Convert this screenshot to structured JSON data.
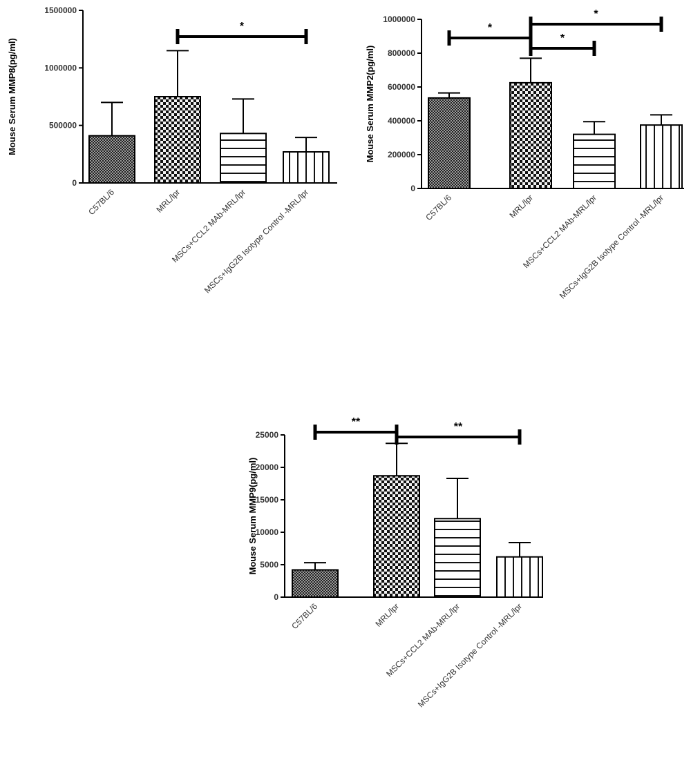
{
  "chart_data": [
    {
      "type": "bar",
      "title": "",
      "xlabel": "",
      "ylabel": "Mouse Serum MMP8(pg/ml)",
      "ylim": [
        0,
        1500000
      ],
      "yticks": [
        "0",
        "500000",
        "1000000",
        "1500000"
      ],
      "ytick_values": [
        0,
        500000,
        1000000,
        1500000
      ],
      "categories": [
        "C57BL/6",
        "MRL/lpr",
        "MSCs+CCL2 MAb-MRL/lpr",
        "MSCs+IgG2B Isotype Control -MRL/lpr"
      ],
      "values": [
        410000,
        750000,
        430000,
        270000
      ],
      "error": [
        290000,
        400000,
        300000,
        125000
      ],
      "patterns": [
        "dense-dots",
        "checker",
        "horizontal-lines",
        "vertical-lines"
      ],
      "significance": [
        {
          "from": "MRL/lpr",
          "to": "MSCs+IgG2B Isotype Control -MRL/lpr",
          "label": "*"
        }
      ]
    },
    {
      "type": "bar",
      "title": "",
      "xlabel": "",
      "ylabel": "Mouse Serum MMP2(pg/ml)",
      "ylim": [
        0,
        1000000
      ],
      "yticks": [
        "0",
        "200000",
        "400000",
        "600000",
        "800000",
        "1000000"
      ],
      "ytick_values": [
        0,
        200000,
        400000,
        600000,
        800000,
        1000000
      ],
      "categories": [
        "C57BL/6",
        "MRL/lpr",
        "MSCs+CCL2 MAb-MRL/lpr",
        "MSCs+IgG2B Isotype Control -MRL/lpr"
      ],
      "values": [
        535000,
        625000,
        320000,
        375000
      ],
      "error": [
        30000,
        145000,
        75000,
        60000
      ],
      "patterns": [
        "dense-dots",
        "checker",
        "horizontal-lines",
        "vertical-lines"
      ],
      "significance": [
        {
          "from": "C57BL/6",
          "to": "MRL/lpr",
          "label": "*"
        },
        {
          "from": "MRL/lpr",
          "to": "MSCs+IgG2B Isotype Control -MRL/lpr",
          "label": "*"
        },
        {
          "from": "MRL/lpr",
          "to": "MSCs+CCL2 MAb-MRL/lpr",
          "label": "*"
        }
      ]
    },
    {
      "type": "bar",
      "title": "",
      "xlabel": "",
      "ylabel": "Mouse Serum MMP9(pg/ml)",
      "ylim": [
        0,
        25000
      ],
      "yticks": [
        "0",
        "5000",
        "10000",
        "15000",
        "20000",
        "25000"
      ],
      "ytick_values": [
        0,
        5000,
        10000,
        15000,
        20000,
        25000
      ],
      "categories": [
        "C57BL/6",
        "MRL/lpr",
        "MSCs+CCL2 MAb-MRL/lpr",
        "MSCs+IgG2B Isotype Control -MRL/lpr"
      ],
      "values": [
        4200,
        18700,
        12100,
        6200
      ],
      "error": [
        1100,
        5000,
        6200,
        2200
      ],
      "patterns": [
        "dense-dots",
        "checker",
        "horizontal-lines",
        "vertical-lines"
      ],
      "significance": [
        {
          "from": "C57BL/6",
          "to": "MRL/lpr",
          "label": "**"
        },
        {
          "from": "MRL/lpr",
          "to": "MSCs+IgG2B Isotype Control -MRL/lpr",
          "label": "**"
        }
      ]
    }
  ]
}
